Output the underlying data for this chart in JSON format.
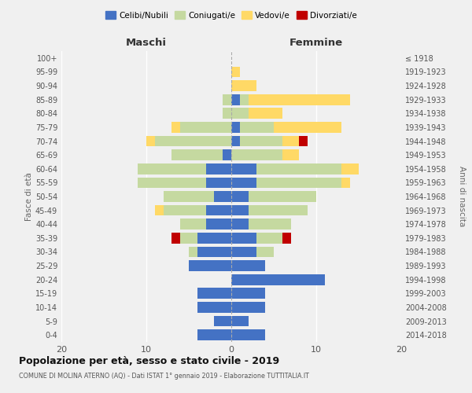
{
  "age_groups": [
    "0-4",
    "5-9",
    "10-14",
    "15-19",
    "20-24",
    "25-29",
    "30-34",
    "35-39",
    "40-44",
    "45-49",
    "50-54",
    "55-59",
    "60-64",
    "65-69",
    "70-74",
    "75-79",
    "80-84",
    "85-89",
    "90-94",
    "95-99",
    "100+"
  ],
  "birth_years": [
    "2014-2018",
    "2009-2013",
    "2004-2008",
    "1999-2003",
    "1994-1998",
    "1989-1993",
    "1984-1988",
    "1979-1983",
    "1974-1978",
    "1969-1973",
    "1964-1968",
    "1959-1963",
    "1954-1958",
    "1949-1953",
    "1944-1948",
    "1939-1943",
    "1934-1938",
    "1929-1933",
    "1924-1928",
    "1919-1923",
    "≤ 1918"
  ],
  "maschi": {
    "celibi": [
      4,
      2,
      4,
      4,
      0,
      5,
      4,
      4,
      3,
      3,
      2,
      3,
      3,
      1,
      0,
      0,
      0,
      0,
      0,
      0,
      0
    ],
    "coniugati": [
      0,
      0,
      0,
      0,
      0,
      0,
      1,
      2,
      3,
      5,
      6,
      8,
      8,
      6,
      9,
      6,
      1,
      1,
      0,
      0,
      0
    ],
    "vedovi": [
      0,
      0,
      0,
      0,
      0,
      0,
      0,
      0,
      0,
      1,
      0,
      0,
      0,
      0,
      1,
      1,
      0,
      0,
      0,
      0,
      0
    ],
    "divorziati": [
      0,
      0,
      0,
      0,
      0,
      0,
      0,
      1,
      0,
      0,
      0,
      0,
      0,
      0,
      0,
      0,
      0,
      0,
      0,
      0,
      0
    ]
  },
  "femmine": {
    "nubili": [
      4,
      2,
      4,
      4,
      11,
      4,
      3,
      3,
      2,
      2,
      2,
      3,
      3,
      0,
      1,
      1,
      0,
      1,
      0,
      0,
      0
    ],
    "coniugate": [
      0,
      0,
      0,
      0,
      0,
      0,
      2,
      3,
      5,
      7,
      8,
      10,
      10,
      6,
      5,
      4,
      2,
      1,
      0,
      0,
      0
    ],
    "vedove": [
      0,
      0,
      0,
      0,
      0,
      0,
      0,
      0,
      0,
      0,
      0,
      1,
      2,
      2,
      2,
      8,
      4,
      12,
      3,
      1,
      0
    ],
    "divorziate": [
      0,
      0,
      0,
      0,
      0,
      0,
      0,
      1,
      0,
      0,
      0,
      0,
      0,
      0,
      1,
      0,
      0,
      0,
      0,
      0,
      0
    ]
  },
  "colors": {
    "celibi": "#4472C4",
    "coniugati": "#c5d9a0",
    "vedovi": "#FFD966",
    "divorziati": "#C00000"
  },
  "xlim": [
    -20,
    20
  ],
  "title": "Popolazione per età, sesso e stato civile - 2019",
  "subtitle": "COMUNE DI MOLINA ATERNO (AQ) - Dati ISTAT 1° gennaio 2019 - Elaborazione TUTTITALIA.IT",
  "ylabel_left": "Fasce di età",
  "ylabel_right": "Anni di nascita",
  "xlabel_maschi": "Maschi",
  "xlabel_femmine": "Femmine",
  "background_color": "#f0f0f0"
}
